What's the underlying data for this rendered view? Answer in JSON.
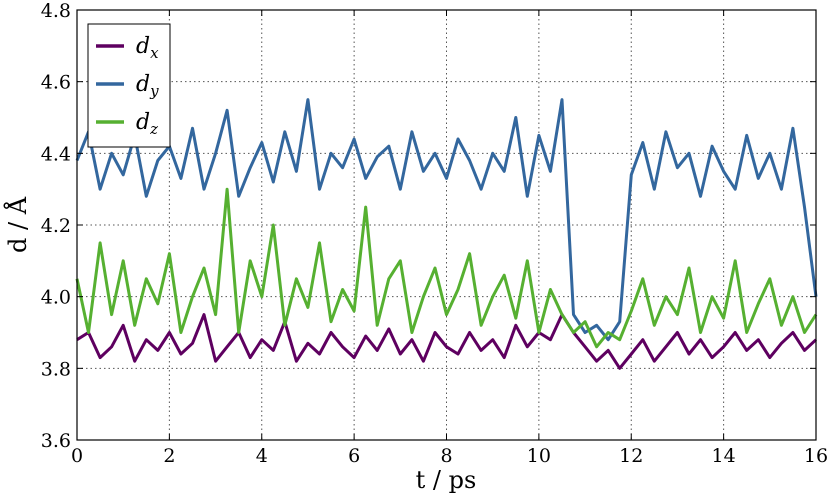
{
  "chart_data": {
    "type": "line",
    "xlabel": "t / ps",
    "ylabel": "d / Å",
    "xlim": [
      0,
      16
    ],
    "ylim": [
      3.6,
      4.8
    ],
    "xticks": [
      "0",
      "2",
      "4",
      "6",
      "8",
      "10",
      "12",
      "14",
      "16"
    ],
    "yticks": [
      "3.6",
      "3.8",
      "4.0",
      "4.2",
      "4.4",
      "4.6",
      "4.8"
    ],
    "grid": true,
    "legend_position": "top-left",
    "series": [
      {
        "name": "d_x",
        "legend_base": "d",
        "legend_sub": "x",
        "color": "#5e0060",
        "x": [
          0,
          0.25,
          0.5,
          0.75,
          1,
          1.25,
          1.5,
          1.75,
          2,
          2.25,
          2.5,
          2.75,
          3,
          3.25,
          3.5,
          3.75,
          4,
          4.25,
          4.5,
          4.75,
          5,
          5.25,
          5.5,
          5.75,
          6,
          6.25,
          6.5,
          6.75,
          7,
          7.25,
          7.5,
          7.75,
          8,
          8.25,
          8.5,
          8.75,
          9,
          9.25,
          9.5,
          9.75,
          10,
          10.25,
          10.5,
          10.75,
          11,
          11.25,
          11.5,
          11.75,
          12,
          12.25,
          12.5,
          12.75,
          13,
          13.25,
          13.5,
          13.75,
          14,
          14.25,
          14.5,
          14.75,
          15,
          15.25,
          15.5,
          15.75,
          16
        ],
        "y": [
          3.88,
          3.9,
          3.83,
          3.86,
          3.92,
          3.82,
          3.88,
          3.85,
          3.9,
          3.84,
          3.87,
          3.95,
          3.82,
          3.86,
          3.9,
          3.83,
          3.88,
          3.85,
          3.93,
          3.82,
          3.87,
          3.84,
          3.9,
          3.86,
          3.83,
          3.89,
          3.85,
          3.91,
          3.84,
          3.88,
          3.82,
          3.9,
          3.86,
          3.84,
          3.9,
          3.85,
          3.88,
          3.83,
          3.92,
          3.86,
          3.9,
          3.88,
          3.95,
          3.9,
          3.86,
          3.82,
          3.85,
          3.8,
          3.84,
          3.88,
          3.82,
          3.86,
          3.9,
          3.84,
          3.88,
          3.83,
          3.86,
          3.9,
          3.85,
          3.88,
          3.83,
          3.87,
          3.9,
          3.85,
          3.88
        ]
      },
      {
        "name": "d_y",
        "legend_base": "d",
        "legend_sub": "y",
        "color": "#33679e",
        "x": [
          0,
          0.25,
          0.5,
          0.75,
          1,
          1.25,
          1.5,
          1.75,
          2,
          2.25,
          2.5,
          2.75,
          3,
          3.25,
          3.5,
          3.75,
          4,
          4.25,
          4.5,
          4.75,
          5,
          5.25,
          5.5,
          5.75,
          6,
          6.25,
          6.5,
          6.75,
          7,
          7.25,
          7.5,
          7.75,
          8,
          8.25,
          8.5,
          8.75,
          9,
          9.25,
          9.5,
          9.75,
          10,
          10.25,
          10.5,
          10.75,
          11,
          11.25,
          11.5,
          11.75,
          12,
          12.25,
          12.5,
          12.75,
          13,
          13.25,
          13.5,
          13.75,
          14,
          14.25,
          14.5,
          14.75,
          15,
          15.25,
          15.5,
          15.75,
          16
        ],
        "y": [
          4.38,
          4.46,
          4.3,
          4.4,
          4.34,
          4.45,
          4.28,
          4.38,
          4.42,
          4.33,
          4.47,
          4.3,
          4.4,
          4.52,
          4.28,
          4.36,
          4.43,
          4.32,
          4.46,
          4.35,
          4.55,
          4.3,
          4.4,
          4.36,
          4.44,
          4.33,
          4.39,
          4.42,
          4.3,
          4.46,
          4.35,
          4.4,
          4.33,
          4.44,
          4.38,
          4.3,
          4.4,
          4.35,
          4.5,
          4.28,
          4.45,
          4.35,
          4.55,
          3.95,
          3.9,
          3.92,
          3.88,
          3.93,
          4.34,
          4.43,
          4.3,
          4.46,
          4.36,
          4.4,
          4.28,
          4.42,
          4.35,
          4.3,
          4.45,
          4.33,
          4.4,
          4.3,
          4.47,
          4.25,
          4.0
        ]
      },
      {
        "name": "d_z",
        "legend_base": "d",
        "legend_sub": "z",
        "color": "#56b031",
        "x": [
          0,
          0.25,
          0.5,
          0.75,
          1,
          1.25,
          1.5,
          1.75,
          2,
          2.25,
          2.5,
          2.75,
          3,
          3.25,
          3.5,
          3.75,
          4,
          4.25,
          4.5,
          4.75,
          5,
          5.25,
          5.5,
          5.75,
          6,
          6.25,
          6.5,
          6.75,
          7,
          7.25,
          7.5,
          7.75,
          8,
          8.25,
          8.5,
          8.75,
          9,
          9.25,
          9.5,
          9.75,
          10,
          10.25,
          10.5,
          10.75,
          11,
          11.25,
          11.5,
          11.75,
          12,
          12.25,
          12.5,
          12.75,
          13,
          13.25,
          13.5,
          13.75,
          14,
          14.25,
          14.5,
          14.75,
          15,
          15.25,
          15.5,
          15.75,
          16
        ],
        "y": [
          4.05,
          3.9,
          4.15,
          3.95,
          4.1,
          3.92,
          4.05,
          3.98,
          4.12,
          3.9,
          4.0,
          4.08,
          3.95,
          4.3,
          3.9,
          4.1,
          4.0,
          4.2,
          3.92,
          4.05,
          3.97,
          4.15,
          3.93,
          4.02,
          3.96,
          4.25,
          3.92,
          4.05,
          4.1,
          3.9,
          4.0,
          4.08,
          3.95,
          4.02,
          4.12,
          3.92,
          4.0,
          4.06,
          3.94,
          4.1,
          3.9,
          4.02,
          3.95,
          3.9,
          3.93,
          3.86,
          3.9,
          3.88,
          3.96,
          4.05,
          3.92,
          4.0,
          3.95,
          4.08,
          3.9,
          4.0,
          3.94,
          4.1,
          3.9,
          3.98,
          4.05,
          3.92,
          4.0,
          3.9,
          3.95
        ]
      }
    ]
  }
}
